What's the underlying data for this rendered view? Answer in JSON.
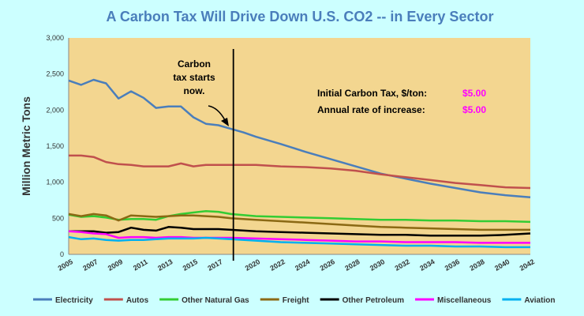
{
  "chart_data": {
    "type": "line",
    "title": "A Carbon Tax Will Drive Down U.S. CO2 -- in Every Sector",
    "ylabel": "Million Metric Tons",
    "xlabel": "",
    "ylim": [
      0,
      3000
    ],
    "xlim": [
      2005,
      2042
    ],
    "y_ticks": [
      "0",
      "500",
      "1,000",
      "1,500",
      "2,000",
      "2,500",
      "3,000"
    ],
    "y_tick_values": [
      0,
      500,
      1000,
      1500,
      2000,
      2500,
      3000
    ],
    "x_ticks": [
      "2005",
      "2007",
      "2009",
      "2011",
      "2013",
      "2015",
      "2017",
      "2020",
      "2022",
      "2024",
      "2026",
      "2028",
      "2030",
      "2032",
      "2034",
      "2036",
      "2038",
      "2040",
      "2042"
    ],
    "x_tick_values": [
      2005,
      2007,
      2009,
      2011,
      2013,
      2015,
      2017,
      2020,
      2022,
      2024,
      2026,
      2028,
      2030,
      2032,
      2034,
      2036,
      2038,
      2040,
      2042
    ],
    "grid": false,
    "plot_background": "#f3d690",
    "legend_position": "bottom",
    "vline": {
      "x": 2018.2,
      "label": "Carbon tax starts now."
    },
    "annotations": [
      {
        "label": "Initial Carbon Tax, $/ton:",
        "value": "$5.00"
      },
      {
        "label": "Annual rate of increase:",
        "value": "$5.00"
      }
    ],
    "annotation_value_color": "#ff00ff",
    "series": [
      {
        "name": "Electricity",
        "color": "#4a7ebb",
        "points": [
          [
            2005,
            2410
          ],
          [
            2006,
            2350
          ],
          [
            2007,
            2420
          ],
          [
            2008,
            2370
          ],
          [
            2009,
            2160
          ],
          [
            2010,
            2260
          ],
          [
            2011,
            2170
          ],
          [
            2012,
            2030
          ],
          [
            2013,
            2050
          ],
          [
            2014,
            2050
          ],
          [
            2015,
            1900
          ],
          [
            2016,
            1810
          ],
          [
            2017,
            1790
          ],
          [
            2018,
            1740
          ],
          [
            2019,
            1690
          ],
          [
            2020,
            1630
          ],
          [
            2022,
            1530
          ],
          [
            2024,
            1420
          ],
          [
            2026,
            1320
          ],
          [
            2028,
            1220
          ],
          [
            2030,
            1120
          ],
          [
            2032,
            1050
          ],
          [
            2034,
            980
          ],
          [
            2036,
            920
          ],
          [
            2038,
            860
          ],
          [
            2040,
            820
          ],
          [
            2042,
            790
          ]
        ]
      },
      {
        "name": "Autos",
        "color": "#c0504d",
        "points": [
          [
            2005,
            1370
          ],
          [
            2006,
            1370
          ],
          [
            2007,
            1350
          ],
          [
            2008,
            1280
          ],
          [
            2009,
            1250
          ],
          [
            2010,
            1240
          ],
          [
            2011,
            1220
          ],
          [
            2012,
            1220
          ],
          [
            2013,
            1220
          ],
          [
            2014,
            1260
          ],
          [
            2015,
            1220
          ],
          [
            2016,
            1240
          ],
          [
            2017,
            1240
          ],
          [
            2018,
            1240
          ],
          [
            2020,
            1240
          ],
          [
            2022,
            1220
          ],
          [
            2024,
            1210
          ],
          [
            2026,
            1190
          ],
          [
            2028,
            1160
          ],
          [
            2030,
            1110
          ],
          [
            2032,
            1070
          ],
          [
            2034,
            1030
          ],
          [
            2036,
            990
          ],
          [
            2038,
            960
          ],
          [
            2040,
            930
          ],
          [
            2042,
            920
          ]
        ]
      },
      {
        "name": "Other Natural Gas",
        "color": "#33cc33",
        "points": [
          [
            2005,
            550
          ],
          [
            2006,
            520
          ],
          [
            2007,
            530
          ],
          [
            2008,
            510
          ],
          [
            2009,
            480
          ],
          [
            2010,
            490
          ],
          [
            2011,
            490
          ],
          [
            2012,
            480
          ],
          [
            2013,
            530
          ],
          [
            2014,
            560
          ],
          [
            2015,
            580
          ],
          [
            2016,
            600
          ],
          [
            2017,
            590
          ],
          [
            2018,
            560
          ],
          [
            2020,
            530
          ],
          [
            2022,
            520
          ],
          [
            2024,
            510
          ],
          [
            2026,
            500
          ],
          [
            2028,
            490
          ],
          [
            2030,
            480
          ],
          [
            2032,
            480
          ],
          [
            2034,
            470
          ],
          [
            2036,
            470
          ],
          [
            2038,
            460
          ],
          [
            2040,
            460
          ],
          [
            2042,
            450
          ]
        ]
      },
      {
        "name": "Freight",
        "color": "#8b6914",
        "points": [
          [
            2005,
            560
          ],
          [
            2006,
            530
          ],
          [
            2007,
            560
          ],
          [
            2008,
            540
          ],
          [
            2009,
            470
          ],
          [
            2010,
            540
          ],
          [
            2011,
            530
          ],
          [
            2012,
            520
          ],
          [
            2013,
            530
          ],
          [
            2014,
            540
          ],
          [
            2015,
            540
          ],
          [
            2016,
            530
          ],
          [
            2017,
            520
          ],
          [
            2018,
            500
          ],
          [
            2020,
            480
          ],
          [
            2022,
            460
          ],
          [
            2024,
            440
          ],
          [
            2026,
            420
          ],
          [
            2028,
            400
          ],
          [
            2030,
            380
          ],
          [
            2032,
            370
          ],
          [
            2034,
            360
          ],
          [
            2036,
            350
          ],
          [
            2038,
            340
          ],
          [
            2040,
            340
          ],
          [
            2042,
            340
          ]
        ]
      },
      {
        "name": "Other Petroleum",
        "color": "#000000",
        "points": [
          [
            2005,
            320
          ],
          [
            2006,
            320
          ],
          [
            2007,
            320
          ],
          [
            2008,
            300
          ],
          [
            2009,
            310
          ],
          [
            2010,
            370
          ],
          [
            2011,
            340
          ],
          [
            2012,
            330
          ],
          [
            2013,
            380
          ],
          [
            2014,
            370
          ],
          [
            2015,
            350
          ],
          [
            2016,
            350
          ],
          [
            2017,
            350
          ],
          [
            2018,
            340
          ],
          [
            2020,
            320
          ],
          [
            2022,
            310
          ],
          [
            2024,
            300
          ],
          [
            2026,
            290
          ],
          [
            2028,
            280
          ],
          [
            2030,
            270
          ],
          [
            2032,
            270
          ],
          [
            2034,
            260
          ],
          [
            2036,
            260
          ],
          [
            2038,
            260
          ],
          [
            2040,
            270
          ],
          [
            2042,
            290
          ]
        ]
      },
      {
        "name": "Miscellaneous",
        "color": "#ff00ff",
        "points": [
          [
            2005,
            320
          ],
          [
            2006,
            310
          ],
          [
            2007,
            290
          ],
          [
            2008,
            280
          ],
          [
            2009,
            230
          ],
          [
            2010,
            240
          ],
          [
            2011,
            240
          ],
          [
            2012,
            230
          ],
          [
            2013,
            240
          ],
          [
            2014,
            240
          ],
          [
            2015,
            230
          ],
          [
            2016,
            230
          ],
          [
            2017,
            230
          ],
          [
            2018,
            230
          ],
          [
            2020,
            220
          ],
          [
            2022,
            210
          ],
          [
            2024,
            200
          ],
          [
            2026,
            190
          ],
          [
            2028,
            180
          ],
          [
            2030,
            180
          ],
          [
            2032,
            170
          ],
          [
            2034,
            170
          ],
          [
            2036,
            170
          ],
          [
            2038,
            160
          ],
          [
            2040,
            160
          ],
          [
            2042,
            160
          ]
        ]
      },
      {
        "name": "Aviation",
        "color": "#00b0f0",
        "points": [
          [
            2005,
            240
          ],
          [
            2006,
            210
          ],
          [
            2007,
            220
          ],
          [
            2008,
            200
          ],
          [
            2009,
            190
          ],
          [
            2010,
            200
          ],
          [
            2011,
            200
          ],
          [
            2012,
            210
          ],
          [
            2013,
            220
          ],
          [
            2014,
            220
          ],
          [
            2015,
            220
          ],
          [
            2016,
            230
          ],
          [
            2017,
            220
          ],
          [
            2018,
            210
          ],
          [
            2020,
            190
          ],
          [
            2022,
            170
          ],
          [
            2024,
            160
          ],
          [
            2026,
            150
          ],
          [
            2028,
            140
          ],
          [
            2030,
            130
          ],
          [
            2032,
            120
          ],
          [
            2034,
            120
          ],
          [
            2036,
            110
          ],
          [
            2038,
            110
          ],
          [
            2040,
            100
          ],
          [
            2042,
            100
          ]
        ]
      }
    ]
  }
}
